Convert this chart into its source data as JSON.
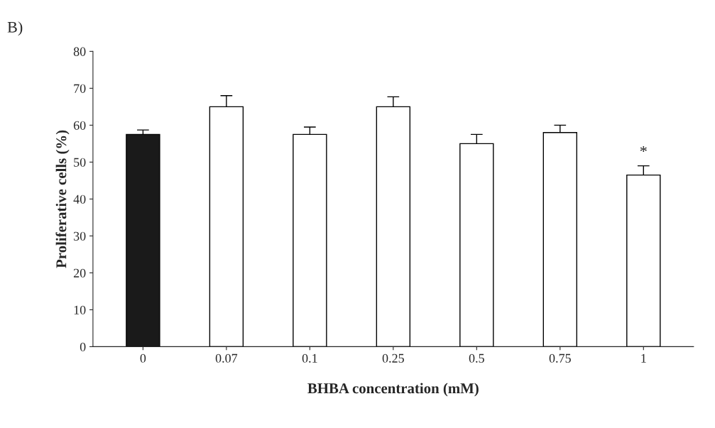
{
  "chart_data": {
    "type": "bar",
    "xlabel": "BHBA concentration (mM)",
    "ylabel": "Proliferative cells (%)",
    "categories": [
      "0",
      "0.07",
      "0.1",
      "0.25",
      "0.5",
      "0.75",
      "1"
    ],
    "values": [
      57.5,
      65,
      57.5,
      65,
      55,
      58,
      46.5
    ],
    "errors": [
      1.2,
      3,
      2,
      2.7,
      2.5,
      2,
      2.5
    ],
    "colors": [
      "#1a1a1a",
      "#ffffff",
      "#ffffff",
      "#ffffff",
      "#ffffff",
      "#ffffff",
      "#ffffff"
    ],
    "ylim": [
      0,
      80
    ],
    "yticks": [
      0,
      10,
      20,
      30,
      40,
      50,
      60,
      70,
      80
    ],
    "grid": false,
    "legend": false,
    "annotations": [
      "B)",
      {
        "text": "*",
        "x": "1",
        "y": 46.5
      }
    ]
  }
}
